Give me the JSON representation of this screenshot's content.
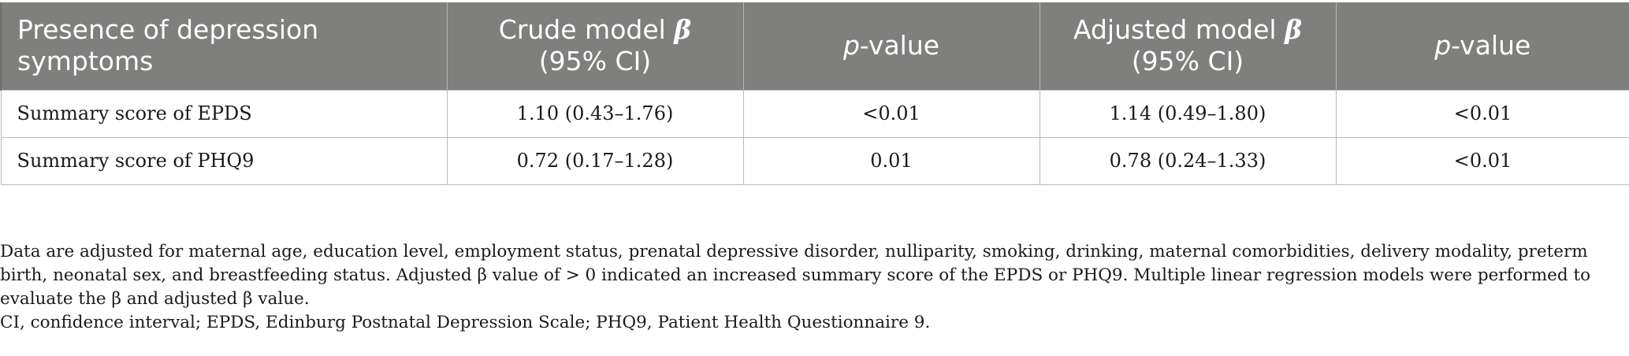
{
  "table": {
    "headers": {
      "col1": "Presence of depression symptoms",
      "col2_prefix": "Crude model ",
      "col2_beta": "β",
      "col2_ci": "(95% CI)",
      "col3_p": "p",
      "col3_rest": "-value",
      "col4_prefix": "Adjusted model ",
      "col4_beta": "β",
      "col4_ci": "(95% CI)",
      "col5_p": "p",
      "col5_rest": "-value"
    },
    "rows": [
      {
        "label": "Summary score of EPDS",
        "crude": "1.10 (0.43–1.76)",
        "crude_p": "<0.01",
        "adjusted": "1.14 (0.49–1.80)",
        "adjusted_p": "<0.01"
      },
      {
        "label": "Summary score of PHQ9",
        "crude": "0.72 (0.17–1.28)",
        "crude_p": "0.01",
        "adjusted": "0.78 (0.24–1.33)",
        "adjusted_p": "<0.01"
      }
    ]
  },
  "footnotes": {
    "note1": "Data are adjusted for maternal age, education level, employment status, prenatal depressive disorder, nulliparity, smoking, drinking, maternal comorbidities, delivery modality, preterm birth, neonatal sex, and breastfeeding status. Adjusted β value of > 0 indicated an increased summary score of the EPDS or PHQ9. Multiple linear regression models were performed to evaluate the β and adjusted β value.",
    "note2": "CI, confidence interval; EPDS, Edinburg Postnatal Depression Scale; PHQ9, Patient Health Questionnaire 9."
  },
  "colors": {
    "header_bg": "#7f7f7d",
    "header_text": "#ffffff",
    "body_text": "#1a1a1a",
    "grid": "#b9b9b9"
  }
}
